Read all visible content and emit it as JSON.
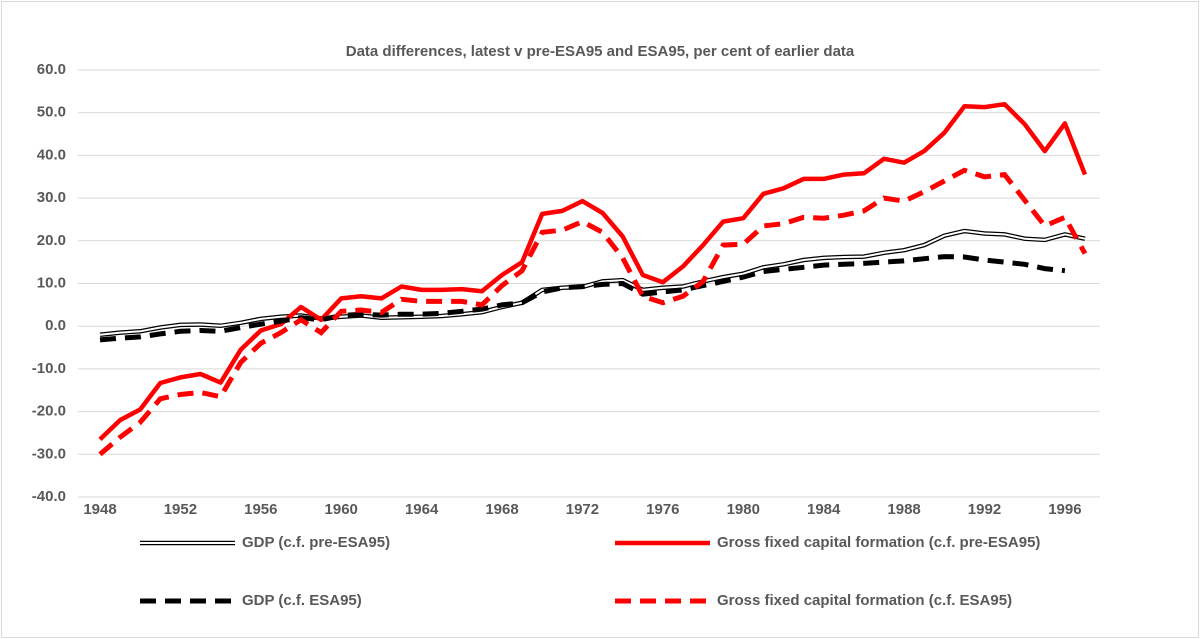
{
  "chart_data": {
    "type": "line",
    "title": "Data differences, latest v pre-ESA95 and ESA95, per cent of earlier data",
    "x": [
      1948,
      1949,
      1950,
      1951,
      1952,
      1953,
      1954,
      1955,
      1956,
      1957,
      1958,
      1959,
      1960,
      1961,
      1962,
      1963,
      1964,
      1965,
      1966,
      1967,
      1968,
      1969,
      1970,
      1971,
      1972,
      1973,
      1974,
      1975,
      1976,
      1977,
      1978,
      1979,
      1980,
      1981,
      1982,
      1983,
      1984,
      1985,
      1986,
      1987,
      1988,
      1989,
      1990,
      1991,
      1992,
      1993,
      1994,
      1995,
      1996,
      1997
    ],
    "xlim": [
      1948,
      1997
    ],
    "xticks": [
      1948,
      1952,
      1956,
      1960,
      1964,
      1968,
      1972,
      1976,
      1980,
      1984,
      1988,
      1992,
      1996
    ],
    "ylim": [
      -40,
      60
    ],
    "yticks": [
      {
        "value": -40,
        "label": "-40.0"
      },
      {
        "value": -30,
        "label": "-30.0"
      },
      {
        "value": -20,
        "label": "-20.0"
      },
      {
        "value": -10,
        "label": "-10.0"
      },
      {
        "value": 0,
        "label": "0.0"
      },
      {
        "value": 10,
        "label": "10.0"
      },
      {
        "value": 20,
        "label": "20.0"
      },
      {
        "value": 30,
        "label": "30.0"
      },
      {
        "value": 40,
        "label": "40.0"
      },
      {
        "value": 50,
        "label": "50.0"
      },
      {
        "value": 60,
        "label": "60.0"
      }
    ],
    "grid": true,
    "legend": "bottom",
    "series": [
      {
        "name": "GDP (c.f. pre-ESA95)",
        "color": "#000000",
        "style": "double",
        "values": [
          -2,
          -1.5,
          -1.2,
          -0.3,
          0.3,
          0.4,
          0.1,
          0.8,
          1.7,
          2.2,
          2.5,
          1.8,
          2.2,
          2.5,
          2.0,
          2.1,
          2.2,
          2.4,
          2.8,
          3.3,
          4.5,
          5.5,
          8.5,
          9,
          9.2,
          10.5,
          10.8,
          8.5,
          9,
          9.3,
          10.5,
          11.5,
          12.3,
          13.8,
          14.5,
          15.5,
          16,
          16.2,
          16.3,
          17.2,
          17.8,
          19,
          21.2,
          22.3,
          21.7,
          21.5,
          20.5,
          20.2,
          21.5,
          20.5
        ]
      },
      {
        "name": "Gross fixed capital formation (c.f. pre-ESA95)",
        "color": "#ff0000",
        "style": "solid",
        "values": [
          -26.5,
          -22,
          -19.5,
          -13.3,
          -12,
          -11.2,
          -13.2,
          -5.5,
          -1,
          0.5,
          4.5,
          1.5,
          6.5,
          7,
          6.5,
          9.3,
          8.5,
          8.5,
          8.7,
          8.2,
          12,
          15,
          26.3,
          27,
          29.3,
          26.5,
          21,
          12,
          10.3,
          14,
          19,
          24.5,
          25.3,
          31,
          32.3,
          34.5,
          34.5,
          35.5,
          35.8,
          39.2,
          38.3,
          41,
          45.3,
          51.5,
          51.3,
          52,
          47.3,
          41,
          47.5,
          35.5
        ]
      },
      {
        "name": "GDP (c.f. ESA95)",
        "color": "#000000",
        "style": "dashed",
        "values": [
          -3.2,
          -2.8,
          -2.5,
          -1.8,
          -1.2,
          -1,
          -1.2,
          -0.3,
          0.5,
          1.2,
          2,
          1.5,
          2.5,
          2.8,
          2.6,
          2.8,
          2.8,
          3,
          3.5,
          4,
          5,
          5.5,
          8,
          9,
          9.3,
          9.8,
          10,
          7.5,
          8,
          8.5,
          9.5,
          10.5,
          11.5,
          12.8,
          13.3,
          13.8,
          14.3,
          14.5,
          14.7,
          15,
          15.3,
          15.8,
          16.3,
          16.2,
          15.5,
          15,
          14.5,
          13.5,
          13,
          null
        ]
      },
      {
        "name": "Gross fixed capital formation (c.f. ESA95)",
        "color": "#ff0000",
        "style": "dashed",
        "values": [
          -30,
          -26,
          -22.5,
          -17,
          -16,
          -15.5,
          -16.5,
          -8.5,
          -4,
          -1.5,
          1.5,
          -1.5,
          3.5,
          3.8,
          3.2,
          6.3,
          5.8,
          5.8,
          5.8,
          5,
          9.5,
          13,
          22,
          22.5,
          24.5,
          22,
          16,
          7,
          5.5,
          7,
          10.5,
          19,
          19.2,
          23.5,
          24,
          25.5,
          25.3,
          26,
          27,
          30,
          29.3,
          31.5,
          34,
          36.5,
          35,
          35.5,
          29.5,
          23.5,
          25.5,
          17
        ]
      }
    ]
  }
}
